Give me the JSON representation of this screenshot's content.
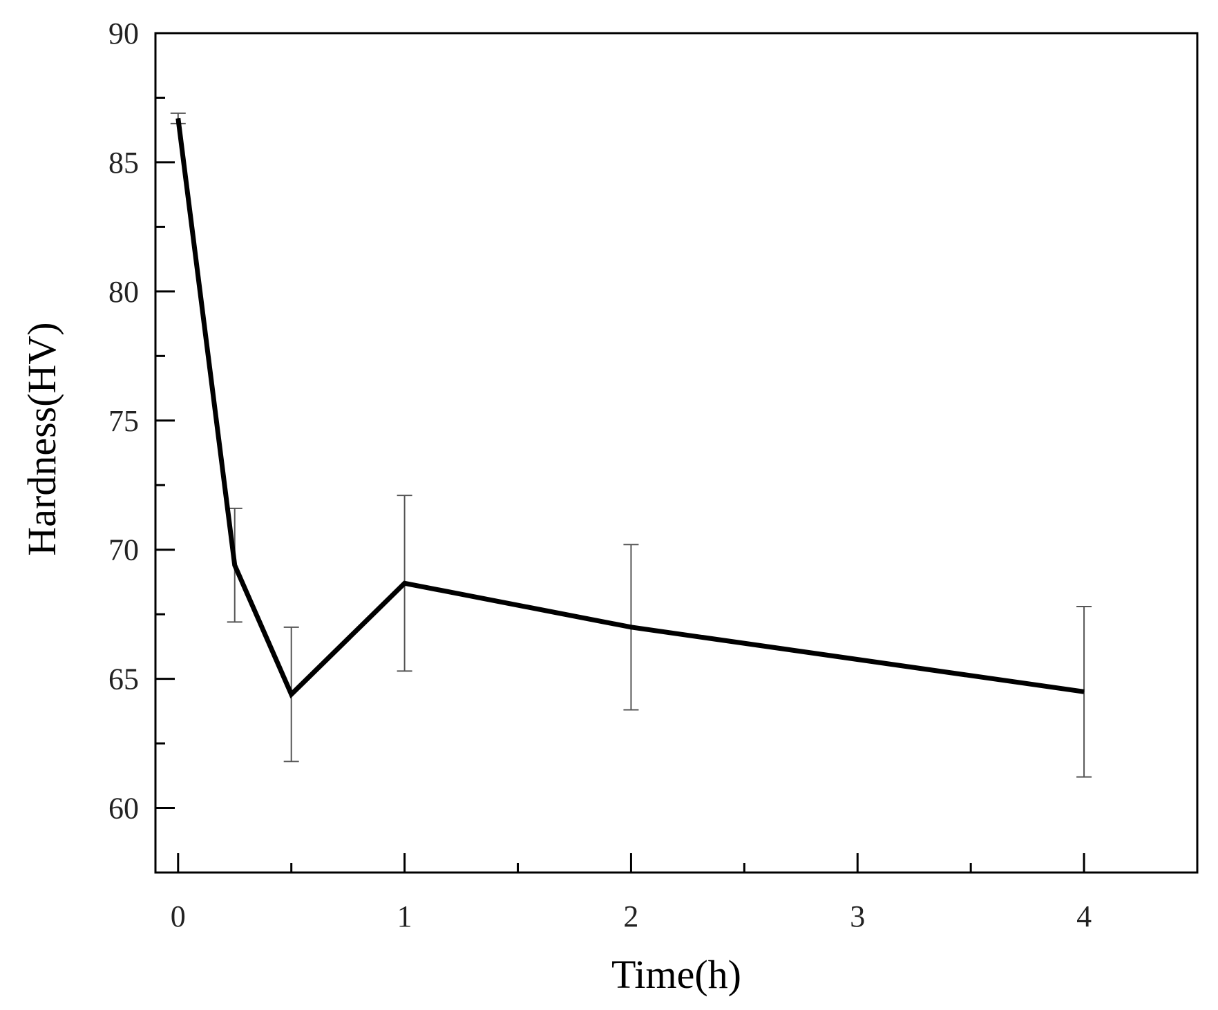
{
  "chart_data": {
    "type": "line",
    "title": "",
    "xlabel": "Time(h)",
    "ylabel": "Hardness(HV)",
    "xlim": [
      -0.1,
      4.5
    ],
    "ylim": [
      57.5,
      90
    ],
    "x_ticks": [
      0,
      1,
      2,
      3,
      4
    ],
    "x_minor_ticks": [
      0.5,
      1.5,
      2.5,
      3.5
    ],
    "y_ticks": [
      60,
      65,
      70,
      75,
      80,
      85,
      90
    ],
    "y_minor_ticks": [
      57.5,
      62.5,
      67.5,
      72.5,
      77.5,
      82.5,
      87.5
    ],
    "grid": false,
    "series": [
      {
        "name": "Hardness",
        "x": [
          0,
          0.25,
          0.5,
          1,
          2,
          4
        ],
        "values": [
          86.7,
          69.4,
          64.4,
          68.7,
          67.0,
          64.5
        ],
        "error": [
          0.2,
          2.2,
          2.6,
          3.4,
          3.2,
          3.3
        ],
        "line_color": "#000000",
        "errorbar_color": "#555555"
      }
    ]
  }
}
